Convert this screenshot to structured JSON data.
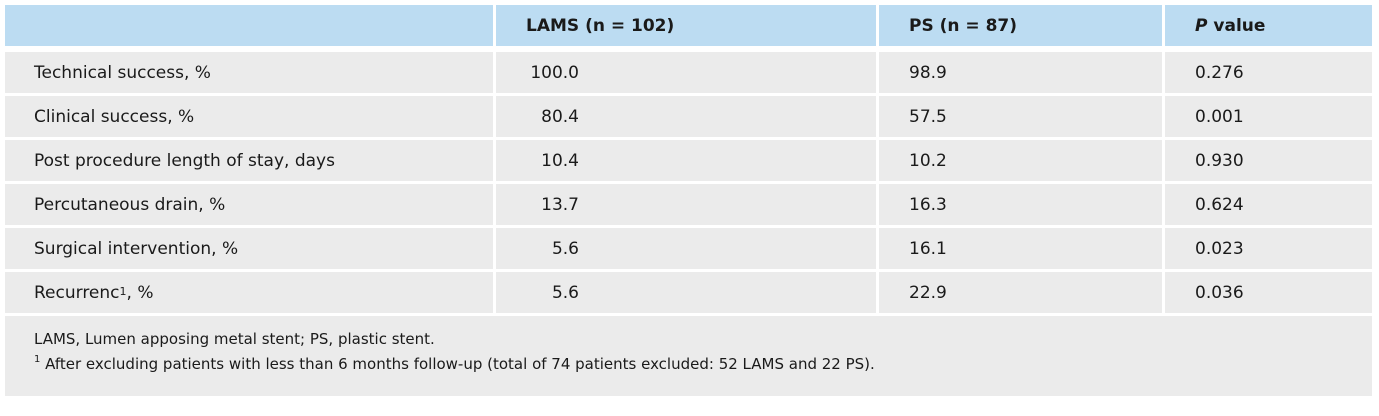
{
  "table": {
    "headers": {
      "col2": "LAMS (n = 102)",
      "col3": "PS (n = 87)",
      "col4_italic": "P",
      "col4_rest": " value"
    },
    "rows": [
      {
        "label": "Technical success, %",
        "sup": "",
        "label_suffix": "",
        "lams": "100.0",
        "ps": "98.9",
        "p": "0.276"
      },
      {
        "label": "Clinical success, %",
        "sup": "",
        "label_suffix": "",
        "lams": "80.4",
        "ps": "57.5",
        "p": "0.001"
      },
      {
        "label": "Post procedure length of stay, days",
        "sup": "",
        "label_suffix": "",
        "lams": "10.4",
        "ps": "10.2",
        "p": "0.930"
      },
      {
        "label": "Percutaneous drain, %",
        "sup": "",
        "label_suffix": "",
        "lams": "13.7",
        "ps": "16.3",
        "p": "0.624"
      },
      {
        "label": "Surgical intervention, %",
        "sup": "",
        "label_suffix": "",
        "lams": "5.6",
        "ps": "16.1",
        "p": "0.023"
      },
      {
        "label": "Recurrenc",
        "sup": "1",
        "label_suffix": ", %",
        "lams": "5.6",
        "ps": "22.9",
        "p": "0.036"
      }
    ],
    "footnote_abbrev": "LAMS, Lumen apposing metal stent; PS, plastic stent.",
    "footnote_sup": "1",
    "footnote_text": " After excluding patients with less than 6 months follow-up (total of 74 patients excluded: 52 LAMS and 22 PS)."
  }
}
